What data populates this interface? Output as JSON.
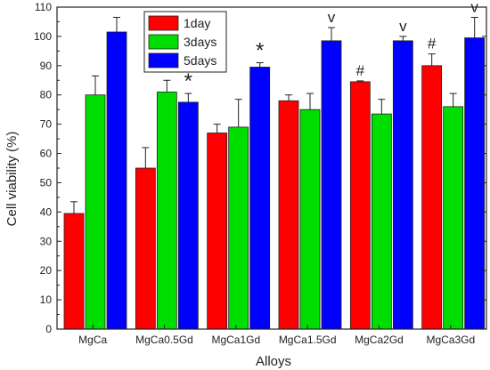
{
  "chart_data": {
    "type": "bar",
    "xlabel": "Alloys",
    "ylabel": "Cell viability (%)",
    "ylim": [
      0,
      110
    ],
    "yticks": [
      0,
      10,
      20,
      30,
      40,
      50,
      60,
      70,
      80,
      90,
      100,
      110
    ],
    "categories": [
      "MgCa",
      "MgCa0.5Gd",
      "MgCa1Gd",
      "MgCa1.5Gd",
      "MgCa2Gd",
      "MgCa3Gd"
    ],
    "series": [
      {
        "name": "1day",
        "color": "#ff0000",
        "values": [
          39.5,
          55,
          67,
          78,
          84.5,
          90
        ],
        "errors": [
          4,
          7,
          3,
          2,
          0.3,
          4
        ]
      },
      {
        "name": "3days",
        "color": "#00dd00",
        "values": [
          80,
          81,
          69,
          75,
          73.5,
          76
        ],
        "errors": [
          6.5,
          4,
          9.5,
          5.5,
          5,
          4.5
        ]
      },
      {
        "name": "5days",
        "color": "#0000ff",
        "values": [
          101.5,
          77.5,
          89.5,
          98.5,
          98.5,
          99.5
        ],
        "errors": [
          5,
          3,
          1.5,
          4.5,
          1.5,
          7
        ]
      }
    ],
    "annotations": [
      {
        "category": 1,
        "series": 2,
        "text": "*"
      },
      {
        "category": 2,
        "series": 2,
        "text": "*"
      },
      {
        "category": 3,
        "series": 2,
        "text": "v"
      },
      {
        "category": 4,
        "series": 0,
        "text": "#"
      },
      {
        "category": 4,
        "series": 2,
        "text": "v"
      },
      {
        "category": 5,
        "series": 0,
        "text": "#"
      },
      {
        "category": 5,
        "series": 2,
        "text": "v"
      }
    ],
    "legend_position": "top-left",
    "grid": false
  }
}
